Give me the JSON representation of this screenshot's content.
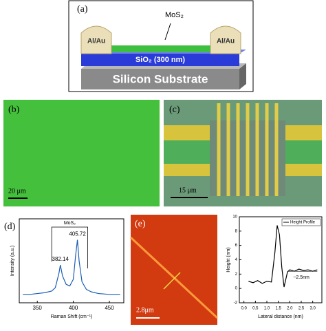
{
  "panel_a": {
    "label": "(a)",
    "mos2": "MoS₂",
    "electrode_left": "Al/Au",
    "electrode_right": "Al/Au",
    "oxide": "SiO₂ (300 nm)",
    "substrate": "Silicon Substrate"
  },
  "panel_b": {
    "label": "(b)",
    "scale_bar": "20 μm"
  },
  "panel_c": {
    "label": "(c)",
    "scale_bar": "15 μm"
  },
  "panel_e": {
    "label": "(e)",
    "scale_bar": "2.8μm"
  },
  "chart_data": [
    {
      "type": "line",
      "label": "(d)",
      "xlabel": "Raman Shift (cm⁻¹)",
      "ylabel": "Intensity (a.u.)",
      "bracket_label": "MoS₂",
      "peak_labels": [
        "382.14",
        "405.72"
      ],
      "color": "#1a5fb4",
      "x": [
        330,
        340,
        350,
        360,
        370,
        375,
        380,
        382,
        385,
        390,
        395,
        400,
        403,
        405.7,
        408,
        412,
        418,
        425,
        435,
        450,
        465
      ],
      "values": [
        20,
        20,
        21,
        22,
        24,
        28,
        45,
        55,
        42,
        32,
        30,
        38,
        65,
        85,
        60,
        35,
        26,
        23,
        21,
        20,
        20
      ],
      "xlim": [
        325,
        470
      ],
      "ylim": [
        10,
        110
      ],
      "xticks": [
        350,
        400,
        450
      ]
    },
    {
      "type": "line",
      "xlabel": "Lateral distance (nm)",
      "ylabel": "Height (nm)",
      "annotation": "~2.5nm",
      "x": [
        0.2,
        0.4,
        0.6,
        0.8,
        1.0,
        1.2,
        1.35,
        1.45,
        1.55,
        1.65,
        1.75,
        1.9,
        2.0,
        2.2,
        2.4,
        2.6,
        2.8,
        3.0,
        3.2
      ],
      "series": [
        {
          "name": "Height Profile",
          "color": "#000000",
          "values": [
            1.0,
            0.8,
            1.1,
            0.7,
            1.0,
            0.9,
            5.0,
            8.8,
            7.5,
            3.0,
            0.2,
            2.3,
            2.6,
            2.4,
            2.7,
            2.5,
            2.6,
            2.4,
            2.6
          ]
        }
      ],
      "xlim": [
        -0.2,
        3.4
      ],
      "ylim": [
        -2,
        10
      ],
      "xticks": [
        {
          "value": 0,
          "label": "0.0"
        },
        {
          "value": 0.5,
          "label": "0.5"
        },
        {
          "value": 1,
          "label": "1.0"
        },
        {
          "value": 1.5,
          "label": "1.5"
        },
        {
          "value": 2,
          "label": "2.0"
        },
        {
          "value": 2.5,
          "label": "2.5"
        },
        {
          "value": 3,
          "label": "3.0"
        }
      ],
      "yticks": [
        -2,
        0,
        2,
        4,
        6,
        8,
        10
      ]
    }
  ]
}
